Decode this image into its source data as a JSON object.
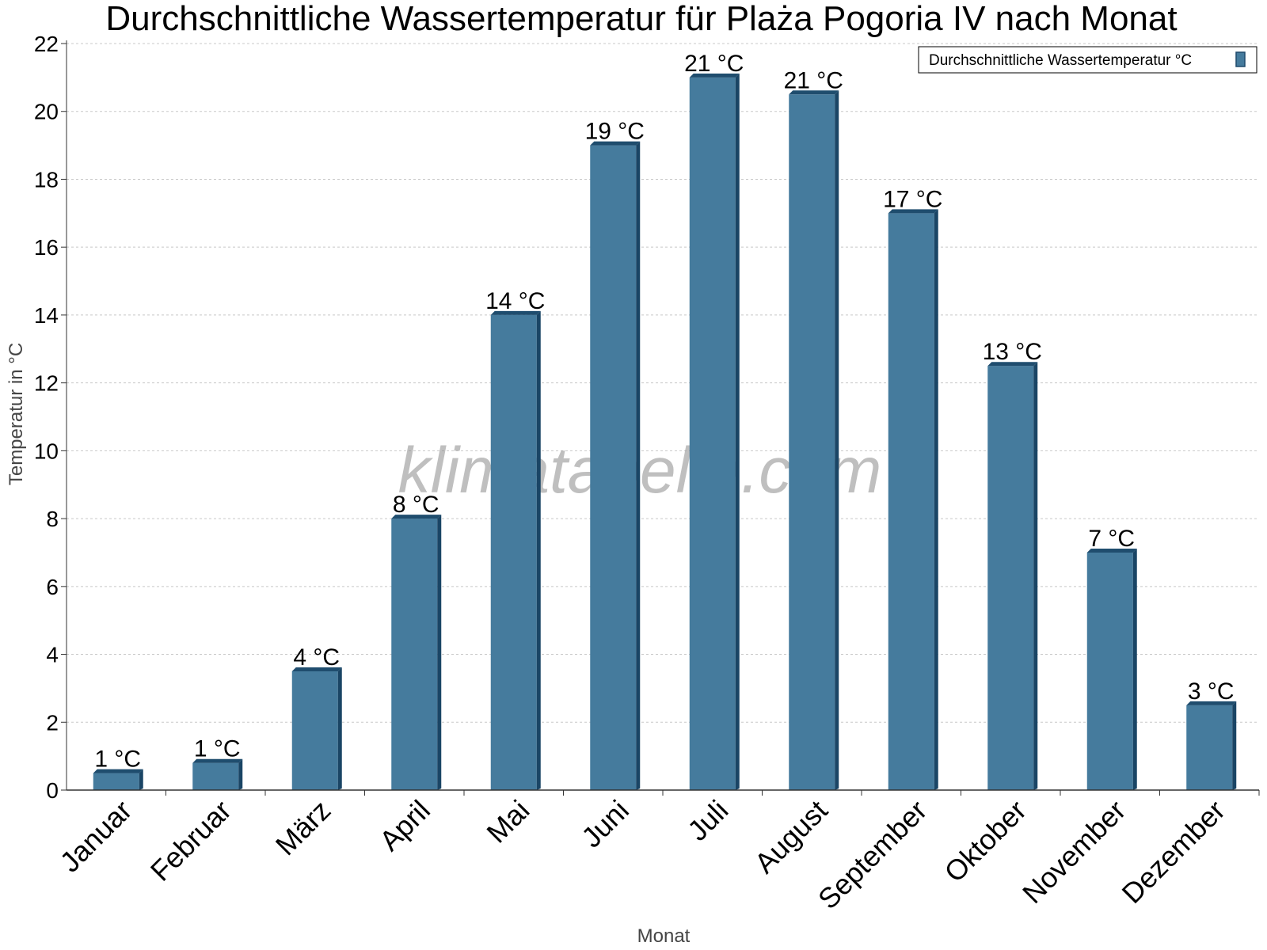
{
  "chart_data": {
    "type": "bar",
    "title": "Durchschnittliche Wassertemperatur für Plaża Pogoria IV nach Monat",
    "xlabel": "Monat",
    "ylabel": "Temperatur in °C",
    "ylim": [
      0,
      22
    ],
    "yticks": [
      0,
      2,
      4,
      6,
      8,
      10,
      12,
      14,
      16,
      18,
      20,
      22
    ],
    "grid": true,
    "legend": {
      "position": "top-right",
      "label": "Durchschnittliche Wassertemperatur °C"
    },
    "watermark": "klimatabelle.com",
    "categories": [
      "Januar",
      "Februar",
      "März",
      "April",
      "Mai",
      "Juni",
      "Juli",
      "August",
      "September",
      "Oktober",
      "November",
      "Dezember"
    ],
    "series": [
      {
        "name": "Durchschnittliche Wassertemperatur °C",
        "color": "#457b9d",
        "values": [
          0.5,
          0.8,
          3.5,
          8.0,
          14.0,
          19.0,
          21.0,
          20.5,
          17.0,
          12.5,
          7.0,
          2.5
        ],
        "labels": [
          "1 °C",
          "1 °C",
          "4 °C",
          "8 °C",
          "14 °C",
          "19 °C",
          "21 °C",
          "21 °C",
          "17 °C",
          "13 °C",
          "7 °C",
          "3 °C"
        ]
      }
    ]
  }
}
